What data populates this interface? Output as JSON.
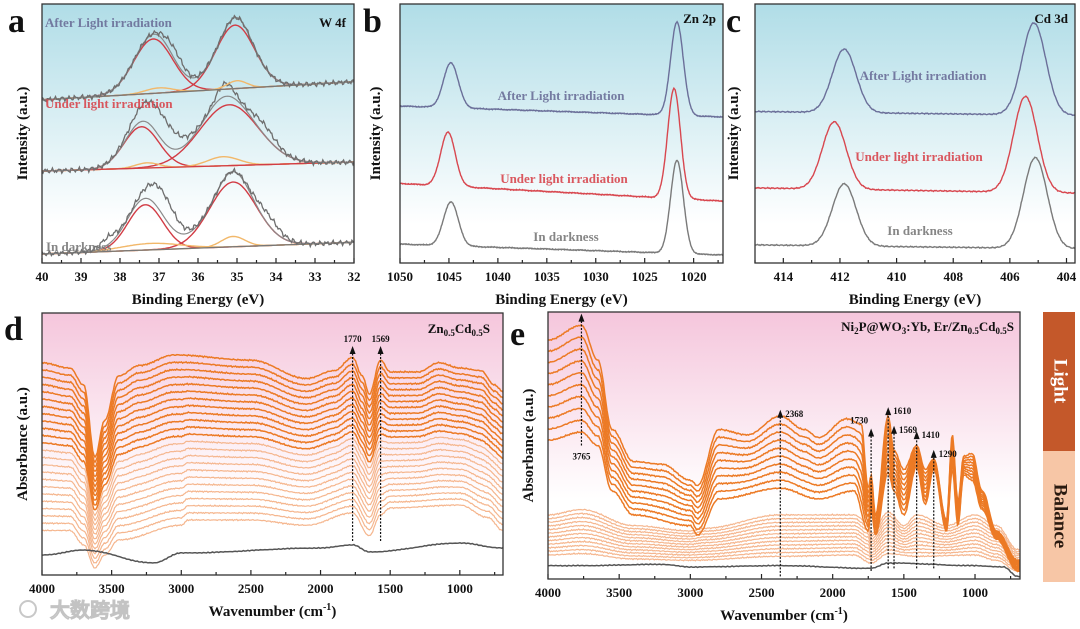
{
  "watermark": "大数跨境",
  "colors": {
    "after": "#6b6f99",
    "under": "#d8474f",
    "dark": "#7a7a7a",
    "fit_red": "#d23c45",
    "fit_yellow": "#f2b86a",
    "xps_bg_top": "#b0dde7",
    "ftir_bg_top": "#f5c6dc",
    "light_line": "#ec7a25",
    "balance_line": "#f5b68e",
    "ref_line": "#555555",
    "light_bar": "#c4582a",
    "balance_bar": "#f7c6a6"
  },
  "side_bar": {
    "light": "Light",
    "balance": "Balance"
  },
  "chart_data": [
    {
      "id": "a",
      "panel_label": "a",
      "type": "line",
      "title": "W 4f",
      "xlabel": "Binding Energy (eV)",
      "ylabel": "Intensity (a.u.)",
      "xlim": [
        40,
        32
      ],
      "ylim": [
        0,
        10
      ],
      "xticks": [
        40,
        39,
        38,
        37,
        36,
        35,
        34,
        33,
        32
      ],
      "series": [
        {
          "name": "In darkness",
          "color_key": "dark",
          "baseline": [
            0.35,
            0.8
          ],
          "fit_peaks": [
            {
              "center": 37.35,
              "height": 1.75,
              "sigma": 0.45,
              "kind": "red"
            },
            {
              "center": 35.1,
              "height": 2.5,
              "sigma": 0.6,
              "kind": "red"
            },
            {
              "center": 37.2,
              "height": 0.25,
              "sigma": 0.75,
              "kind": "yellow"
            },
            {
              "center": 35.1,
              "height": 0.4,
              "sigma": 0.3,
              "kind": "yellow"
            }
          ],
          "extra_peaks": [
            {
              "center": 36.9,
              "height": 0.9,
              "sigma": 0.35
            },
            {
              "center": 34.2,
              "height": 0.4,
              "sigma": 0.3
            },
            {
              "center": 38.3,
              "height": 0.3,
              "sigma": 0.2
            }
          ]
        },
        {
          "name": "Under light irradiation",
          "color_key": "under",
          "baseline": [
            3.55,
            3.9
          ],
          "fit_peaks": [
            {
              "center": 37.45,
              "height": 1.6,
              "sigma": 0.45,
              "kind": "red"
            },
            {
              "center": 35.2,
              "height": 2.35,
              "sigma": 0.75,
              "kind": "red"
            },
            {
              "center": 37.3,
              "height": 0.2,
              "sigma": 0.3,
              "kind": "yellow"
            },
            {
              "center": 35.35,
              "height": 0.35,
              "sigma": 0.4,
              "kind": "yellow"
            }
          ],
          "extra_peaks": [
            {
              "center": 37.0,
              "height": 1.0,
              "sigma": 0.45
            },
            {
              "center": 35.3,
              "height": 0.5,
              "sigma": 0.2
            },
            {
              "center": 34.3,
              "height": 0.4,
              "sigma": 0.3
            }
          ]
        },
        {
          "name": "After Light irradiation",
          "color_key": "after",
          "baseline": [
            6.3,
            7.0
          ],
          "fit_peaks": [
            {
              "center": 37.15,
              "height": 2.1,
              "sigma": 0.5,
              "kind": "red"
            },
            {
              "center": 35.05,
              "height": 2.45,
              "sigma": 0.5,
              "kind": "red"
            },
            {
              "center": 37.0,
              "height": 0.2,
              "sigma": 0.35,
              "kind": "yellow"
            },
            {
              "center": 35.0,
              "height": 0.3,
              "sigma": 0.25,
              "kind": "yellow"
            }
          ],
          "extra_peaks": [
            {
              "center": 36.6,
              "height": 0.4,
              "sigma": 0.25
            }
          ]
        }
      ]
    },
    {
      "id": "b",
      "panel_label": "b",
      "type": "line",
      "title": "Zn 2p",
      "xlabel": "Binding Energy (eV)",
      "ylabel": "Intensity (a.u.)",
      "xlim": [
        1050,
        1017
      ],
      "ylim": [
        0,
        10
      ],
      "xticks": [
        1050,
        1045,
        1040,
        1035,
        1030,
        1025,
        1020
      ],
      "series": [
        {
          "name": "In darkness",
          "color_key": "dark",
          "baseline": [
            0.73,
            0.31
          ],
          "peaks": [
            {
              "center": 1044.8,
              "height": 1.7,
              "sigma": 0.75
            },
            {
              "center": 1021.7,
              "height": 3.6,
              "sigma": 0.65
            }
          ]
        },
        {
          "name": "Under light irradiation",
          "color_key": "under",
          "baseline": [
            3.07,
            2.39
          ],
          "peaks": [
            {
              "center": 1045.1,
              "height": 2.08,
              "sigma": 0.75
            },
            {
              "center": 1022.0,
              "height": 4.25,
              "sigma": 0.65
            }
          ]
        },
        {
          "name": "After Light irradiation",
          "color_key": "after",
          "baseline": [
            6.06,
            5.64
          ],
          "peaks": [
            {
              "center": 1044.8,
              "height": 1.74,
              "sigma": 0.75
            },
            {
              "center": 1021.7,
              "height": 3.6,
              "sigma": 0.65
            }
          ]
        }
      ]
    },
    {
      "id": "c",
      "panel_label": "c",
      "type": "line",
      "title": "Cd 3d",
      "xlabel": "Binding Energy (eV)",
      "ylabel": "Intensity (a.u.)",
      "xlim": [
        415,
        403.7
      ],
      "ylim": [
        0,
        10
      ],
      "xticks": [
        414,
        412,
        410,
        408,
        406,
        404
      ],
      "series": [
        {
          "name": "In darkness",
          "color_key": "dark",
          "baseline": [
            0.7,
            0.55
          ],
          "peaks": [
            {
              "center": 411.85,
              "height": 2.4,
              "sigma": 0.42
            },
            {
              "center": 405.1,
              "height": 3.5,
              "sigma": 0.42
            }
          ]
        },
        {
          "name": "Under light irradiation",
          "color_key": "under",
          "baseline": [
            2.9,
            2.7
          ],
          "peaks": [
            {
              "center": 412.2,
              "height": 2.6,
              "sigma": 0.42
            },
            {
              "center": 405.45,
              "height": 3.7,
              "sigma": 0.42
            }
          ]
        },
        {
          "name": "After Light irradiation",
          "color_key": "after",
          "baseline": [
            5.85,
            5.7
          ],
          "peaks": [
            {
              "center": 411.85,
              "height": 2.45,
              "sigma": 0.42
            },
            {
              "center": 405.15,
              "height": 3.55,
              "sigma": 0.42
            }
          ]
        }
      ]
    },
    {
      "id": "d",
      "panel_label": "d",
      "type": "line",
      "title_parts": [
        {
          "t": "Zn"
        },
        {
          "t": "0.5",
          "sub": true
        },
        {
          "t": "Cd"
        },
        {
          "t": "0.5",
          "sub": true
        },
        {
          "t": "S"
        }
      ],
      "xlabel": "Wavenumber (cm",
      "xlabel_sup": "-1",
      "xlabel_end": ")",
      "ylabel": "Absorbance (a.u.)",
      "xlim": [
        4000,
        690
      ],
      "ylim": [
        0,
        10
      ],
      "xticks": [
        4000,
        3500,
        3000,
        2500,
        2000,
        1500,
        1000
      ],
      "light_count": 12,
      "balance_count": 12,
      "top_curve": [
        [
          4000,
          8.1
        ],
        [
          3800,
          7.9
        ],
        [
          3700,
          7.25
        ],
        [
          3620,
          4.5
        ],
        [
          3550,
          5.9
        ],
        [
          3450,
          7.6
        ],
        [
          3300,
          8.0
        ],
        [
          3050,
          8.4
        ],
        [
          2500,
          8.2
        ],
        [
          2100,
          7.5
        ],
        [
          1900,
          7.8
        ],
        [
          1770,
          8.3
        ],
        [
          1700,
          7.6
        ],
        [
          1650,
          6.9
        ],
        [
          1569,
          8.2
        ],
        [
          1500,
          7.75
        ],
        [
          1300,
          7.75
        ],
        [
          1150,
          8.1
        ],
        [
          1000,
          7.9
        ],
        [
          850,
          7.8
        ],
        [
          750,
          7.25
        ],
        [
          690,
          7.0
        ]
      ],
      "bottom_curve": [
        [
          4000,
          1.7
        ],
        [
          3800,
          1.7
        ],
        [
          3700,
          1.15
        ],
        [
          3620,
          0.27
        ],
        [
          3550,
          0.76
        ],
        [
          3450,
          1.34
        ],
        [
          3000,
          1.9
        ],
        [
          2950,
          2.1
        ],
        [
          2500,
          2.1
        ],
        [
          2100,
          1.9
        ],
        [
          1770,
          2.37
        ],
        [
          1650,
          1.5
        ],
        [
          1569,
          2.3
        ],
        [
          1500,
          2.56
        ],
        [
          1000,
          2.67
        ],
        [
          800,
          2.2
        ],
        [
          690,
          1.7
        ]
      ],
      "reference_curve": [
        [
          4000,
          0.76
        ],
        [
          3700,
          0.95
        ],
        [
          3200,
          0.46
        ],
        [
          3000,
          0.84
        ],
        [
          2000,
          1.03
        ],
        [
          1770,
          1.15
        ],
        [
          1650,
          0.88
        ],
        [
          1000,
          1.22
        ],
        [
          690,
          1.03
        ]
      ],
      "annotations": [
        {
          "label": "1770",
          "x": 1770,
          "y_from": 1.3,
          "y_to": 8.7,
          "label_pos": "top"
        },
        {
          "label": "1569",
          "x": 1569,
          "y_from": 1.3,
          "y_to": 8.7,
          "label_pos": "top"
        }
      ]
    },
    {
      "id": "e",
      "panel_label": "e",
      "type": "line",
      "title_parts": [
        {
          "t": "Ni"
        },
        {
          "t": "2",
          "sub": true
        },
        {
          "t": "P@WO"
        },
        {
          "t": "3",
          "sub": true
        },
        {
          "t": ":Yb, Er/Zn"
        },
        {
          "t": "0.5",
          "sub": true
        },
        {
          "t": "Cd"
        },
        {
          "t": "0.5",
          "sub": true
        },
        {
          "t": "S"
        }
      ],
      "xlabel": "Wavenumber (cm",
      "xlabel_sup": "-1",
      "xlabel_end": ")",
      "ylabel": "Absorbance (a.u.)",
      "xlim": [
        4000,
        684
      ],
      "ylim": [
        0,
        10
      ],
      "xticks": [
        4000,
        3500,
        3000,
        2500,
        2000,
        1500,
        1000
      ],
      "light_count": 10,
      "balance_count": 12,
      "light_top": [
        [
          4000,
          8.95
        ],
        [
          3765,
          9.5
        ],
        [
          3650,
          8.2
        ],
        [
          3550,
          5.6
        ],
        [
          3400,
          4.4
        ],
        [
          3200,
          4.3
        ],
        [
          3000,
          3.7
        ],
        [
          2950,
          3.5
        ],
        [
          2800,
          5.6
        ],
        [
          2600,
          5.4
        ],
        [
          2368,
          6.1
        ],
        [
          2200,
          5.6
        ],
        [
          2100,
          5.3
        ],
        [
          1900,
          6.0
        ],
        [
          1800,
          5.8
        ],
        [
          1750,
          3.4
        ],
        [
          1730,
          3.9
        ],
        [
          1700,
          2.4
        ],
        [
          1610,
          6.1
        ],
        [
          1569,
          4.8
        ],
        [
          1500,
          4.1
        ],
        [
          1410,
          5.0
        ],
        [
          1350,
          4.1
        ],
        [
          1290,
          4.5
        ],
        [
          1200,
          2.2
        ],
        [
          1160,
          5.4
        ],
        [
          1120,
          2.9
        ],
        [
          1080,
          4.6
        ],
        [
          1020,
          4.7
        ],
        [
          950,
          3.3
        ],
        [
          850,
          1.8
        ],
        [
          700,
          0.7
        ]
      ],
      "light_bottom": [
        [
          4000,
          5.2
        ],
        [
          3765,
          5.5
        ],
        [
          3650,
          5.0
        ],
        [
          3550,
          3.3
        ],
        [
          3400,
          2.4
        ],
        [
          3000,
          2.0
        ],
        [
          2950,
          1.65
        ],
        [
          2800,
          3.0
        ],
        [
          2368,
          3.4
        ],
        [
          2100,
          3.0
        ],
        [
          1850,
          3.3
        ],
        [
          1750,
          1.8
        ],
        [
          1730,
          2.6
        ],
        [
          1700,
          1.65
        ],
        [
          1610,
          4.0
        ],
        [
          1569,
          3.3
        ],
        [
          1500,
          2.4
        ],
        [
          1410,
          4.2
        ],
        [
          1350,
          2.8
        ],
        [
          1290,
          4.1
        ],
        [
          1200,
          1.8
        ],
        [
          1160,
          4.1
        ],
        [
          1120,
          2.0
        ],
        [
          1080,
          3.9
        ],
        [
          1020,
          3.7
        ],
        [
          950,
          2.6
        ],
        [
          850,
          1.5
        ],
        [
          700,
          0.3
        ]
      ],
      "balance_top": [
        [
          4000,
          2.4
        ],
        [
          3765,
          2.6
        ],
        [
          3400,
          2.0
        ],
        [
          3000,
          1.8
        ],
        [
          2900,
          1.9
        ],
        [
          2368,
          2.4
        ],
        [
          1850,
          2.4
        ],
        [
          1750,
          2.1
        ],
        [
          1730,
          1.7
        ],
        [
          1610,
          2.5
        ],
        [
          1500,
          2.0
        ],
        [
          1410,
          2.4
        ],
        [
          1200,
          2.0
        ],
        [
          1000,
          2.4
        ],
        [
          850,
          2.0
        ],
        [
          700,
          1.1
        ]
      ],
      "balance_bottom": [
        [
          4000,
          0.9
        ],
        [
          3765,
          0.95
        ],
        [
          3400,
          0.75
        ],
        [
          3000,
          0.7
        ],
        [
          2368,
          0.85
        ],
        [
          1850,
          0.9
        ],
        [
          1730,
          0.6
        ],
        [
          1610,
          0.95
        ],
        [
          1410,
          0.85
        ],
        [
          1000,
          0.9
        ],
        [
          850,
          0.7
        ],
        [
          700,
          0.3
        ]
      ],
      "reference_curve": [
        [
          4000,
          0.5
        ],
        [
          3765,
          0.5
        ],
        [
          3200,
          0.55
        ],
        [
          3000,
          0.45
        ],
        [
          2368,
          0.5
        ],
        [
          1730,
          0.4
        ],
        [
          1610,
          0.6
        ],
        [
          1000,
          0.5
        ],
        [
          800,
          0.45
        ],
        [
          700,
          0.1
        ]
      ],
      "annotations": [
        {
          "label": "3765",
          "x": 3765,
          "y_from": 5.0,
          "y_to": 9.9,
          "label_pos": "bottom"
        },
        {
          "label": "2368",
          "x": 2368,
          "y_from": 0.1,
          "y_to": 6.3,
          "label_pos": "right"
        },
        {
          "label": "1730",
          "x": 1730,
          "y_from": 0.3,
          "y_to": 5.6,
          "label_pos": "top-left"
        },
        {
          "label": "1610",
          "x": 1610,
          "y_from": 0.4,
          "y_to": 6.4,
          "label_pos": "right"
        },
        {
          "label": "1569",
          "x": 1569,
          "y_from": 0.4,
          "y_to": 5.7,
          "label_pos": "right"
        },
        {
          "label": "1410",
          "x": 1410,
          "y_from": 0.4,
          "y_to": 5.5,
          "label_pos": "right"
        },
        {
          "label": "1290",
          "x": 1290,
          "y_from": 0.4,
          "y_to": 4.8,
          "label_pos": "right"
        }
      ]
    }
  ]
}
